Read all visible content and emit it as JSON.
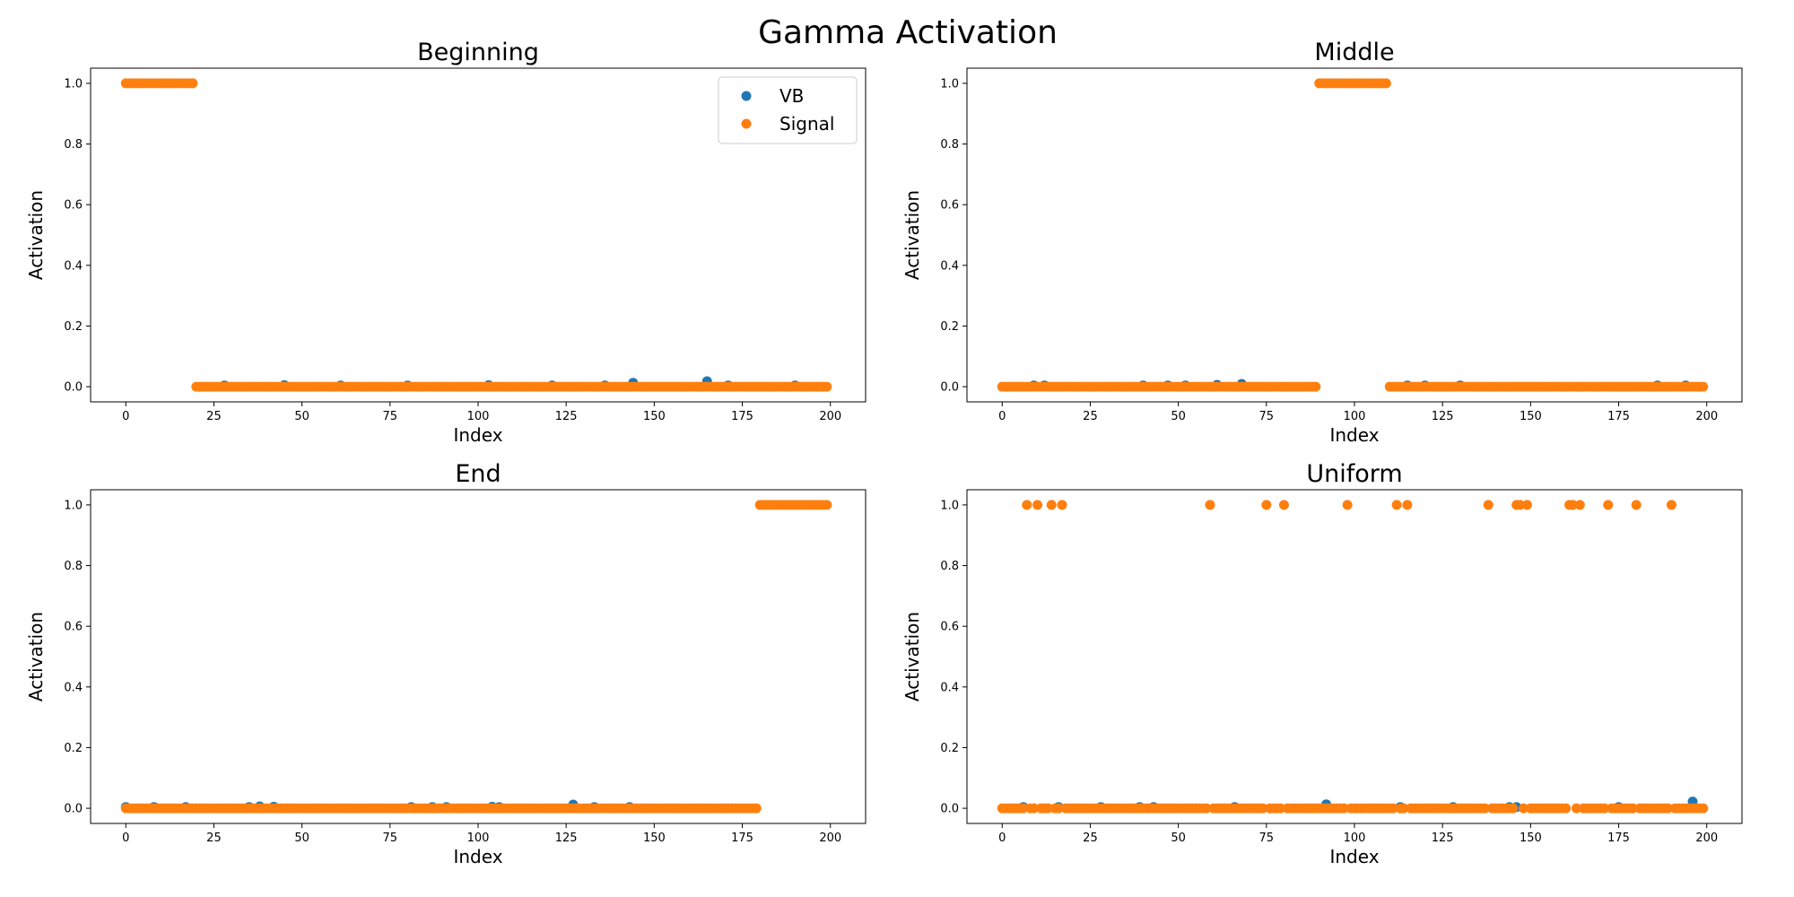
{
  "figure": {
    "title": "Gamma Activation"
  },
  "colors": {
    "vb": "#1f77b4",
    "signal": "#ff7f0e",
    "axes": "#000000",
    "legend_border": "#cccccc"
  },
  "chart_data": [
    {
      "type": "scatter",
      "title": "Beginning",
      "xlabel": "Index",
      "ylabel": "Activation",
      "xlim": [
        -10,
        210
      ],
      "ylim": [
        -0.05,
        1.05
      ],
      "xticks": [
        0,
        25,
        50,
        75,
        100,
        125,
        150,
        175,
        200
      ],
      "yticks": [
        0.0,
        0.2,
        0.4,
        0.6,
        0.8,
        1.0
      ],
      "legend": {
        "placement": "upper-right",
        "entries": [
          "VB",
          "Signal"
        ]
      },
      "series": [
        {
          "name": "VB",
          "color_key": "vb",
          "points": [
            [
              28,
              0.004
            ],
            [
              45,
              0.005
            ],
            [
              61,
              0.004
            ],
            [
              80,
              0.004
            ],
            [
              103,
              0.005
            ],
            [
              121,
              0.004
            ],
            [
              136,
              0.004
            ],
            [
              144,
              0.013
            ],
            [
              165,
              0.018
            ],
            [
              171,
              0.004
            ],
            [
              190,
              0.004
            ]
          ]
        },
        {
          "name": "Signal",
          "color_key": "signal",
          "signal": {
            "n": 200,
            "high_ranges": [
              [
                0,
                19
              ]
            ],
            "high_value": 1.0,
            "low_value": 0.0
          }
        }
      ]
    },
    {
      "type": "scatter",
      "title": "Middle",
      "xlabel": "Index",
      "ylabel": "Activation",
      "xlim": [
        -10,
        210
      ],
      "ylim": [
        -0.05,
        1.05
      ],
      "xticks": [
        0,
        25,
        50,
        75,
        100,
        125,
        150,
        175,
        200
      ],
      "yticks": [
        0.0,
        0.2,
        0.4,
        0.6,
        0.8,
        1.0
      ],
      "series": [
        {
          "name": "VB",
          "color_key": "vb",
          "points": [
            [
              9,
              0.004
            ],
            [
              12,
              0.004
            ],
            [
              40,
              0.004
            ],
            [
              47,
              0.004
            ],
            [
              52,
              0.004
            ],
            [
              61,
              0.006
            ],
            [
              68,
              0.009
            ],
            [
              115,
              0.004
            ],
            [
              120,
              0.004
            ],
            [
              130,
              0.004
            ],
            [
              186,
              0.004
            ],
            [
              194,
              0.004
            ]
          ]
        },
        {
          "name": "Signal",
          "color_key": "signal",
          "signal": {
            "n": 200,
            "high_ranges": [
              [
                90,
                109
              ]
            ],
            "high_value": 1.0,
            "low_value": 0.0
          }
        }
      ]
    },
    {
      "type": "scatter",
      "title": "End",
      "xlabel": "Index",
      "ylabel": "Activation",
      "xlim": [
        -10,
        210
      ],
      "ylim": [
        -0.05,
        1.05
      ],
      "xticks": [
        0,
        25,
        50,
        75,
        100,
        125,
        150,
        175,
        200
      ],
      "yticks": [
        0.0,
        0.2,
        0.4,
        0.6,
        0.8,
        1.0
      ],
      "series": [
        {
          "name": "VB",
          "color_key": "vb",
          "points": [
            [
              0,
              0.004
            ],
            [
              8,
              0.004
            ],
            [
              17,
              0.004
            ],
            [
              35,
              0.004
            ],
            [
              38,
              0.006
            ],
            [
              42,
              0.005
            ],
            [
              81,
              0.004
            ],
            [
              87,
              0.004
            ],
            [
              91,
              0.004
            ],
            [
              104,
              0.005
            ],
            [
              106,
              0.004
            ],
            [
              127,
              0.012
            ],
            [
              133,
              0.004
            ],
            [
              143,
              0.004
            ]
          ]
        },
        {
          "name": "Signal",
          "color_key": "signal",
          "signal": {
            "n": 200,
            "high_ranges": [
              [
                180,
                199
              ]
            ],
            "high_value": 1.0,
            "low_value": 0.0
          }
        }
      ]
    },
    {
      "type": "scatter",
      "title": "Uniform",
      "xlabel": "Index",
      "ylabel": "Activation",
      "xlim": [
        -10,
        210
      ],
      "ylim": [
        -0.05,
        1.05
      ],
      "xticks": [
        0,
        25,
        50,
        75,
        100,
        125,
        150,
        175,
        200
      ],
      "yticks": [
        0.0,
        0.2,
        0.4,
        0.6,
        0.8,
        1.0
      ],
      "series": [
        {
          "name": "VB",
          "color_key": "vb",
          "points": [
            [
              6,
              0.004
            ],
            [
              16,
              0.004
            ],
            [
              28,
              0.004
            ],
            [
              39,
              0.004
            ],
            [
              43,
              0.004
            ],
            [
              66,
              0.004
            ],
            [
              92,
              0.013
            ],
            [
              113,
              0.004
            ],
            [
              128,
              0.004
            ],
            [
              144,
              0.004
            ],
            [
              146,
              0.004
            ],
            [
              175,
              0.004
            ],
            [
              196,
              0.022
            ]
          ]
        },
        {
          "name": "Signal",
          "color_key": "signal",
          "signal": {
            "n": 200,
            "high_ranges": [
              [
                7,
                7
              ],
              [
                10,
                10
              ],
              [
                14,
                14
              ],
              [
                17,
                17
              ],
              [
                59,
                59
              ],
              [
                75,
                75
              ],
              [
                80,
                80
              ],
              [
                98,
                98
              ],
              [
                112,
                112
              ],
              [
                115,
                115
              ],
              [
                138,
                138
              ],
              [
                146,
                147
              ],
              [
                149,
                149
              ],
              [
                161,
                162
              ],
              [
                164,
                164
              ],
              [
                172,
                172
              ],
              [
                180,
                180
              ],
              [
                190,
                190
              ]
            ],
            "high_value": 1.0,
            "low_value": 0.0
          }
        }
      ]
    }
  ]
}
